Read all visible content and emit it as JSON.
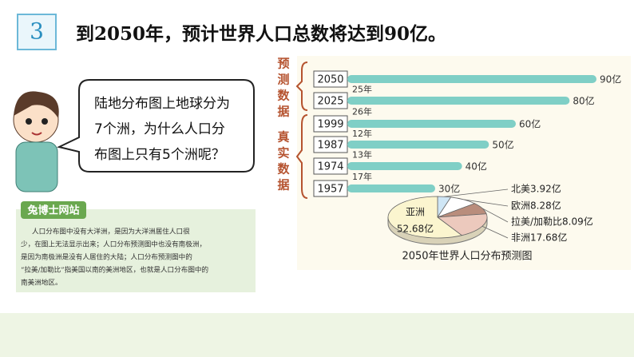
{
  "header": {
    "number": "3",
    "title": "到2050年，预计世界人口总数将达到90亿。"
  },
  "speech": {
    "lines": [
      "陆地分布图上地球分为",
      "7个洲，为什么人口分",
      "布图上只有5个洲呢？"
    ]
  },
  "note": {
    "title": "兔博士网站",
    "lines": [
      "人口分布图中没有大洋洲，是因为大洋洲居住人口很",
      "少，在图上无法显示出来；人口分布预测图中也没有南极洲，",
      "是因为南极洲是没有人居住的大陆；人口分布预测图中的",
      "“拉美/加勒比”指美国以南的美洲地区，也就是人口分布图中的",
      "南美洲地区。"
    ]
  },
  "timeline": {
    "group_labels": [
      "预测数据",
      "真实数据"
    ],
    "rows": [
      {
        "year": "2050",
        "value": 90,
        "label": "90亿"
      },
      {
        "year": "2025",
        "value": 80,
        "label": "80亿"
      },
      {
        "year": "1999",
        "value": 60,
        "label": "60亿"
      },
      {
        "year": "1987",
        "value": 50,
        "label": "50亿"
      },
      {
        "year": "1974",
        "value": 40,
        "label": "40亿"
      },
      {
        "year": "1957",
        "value": 30,
        "label": "30亿"
      }
    ],
    "gaps": [
      "25年",
      "26年",
      "12年",
      "13年",
      "17年"
    ]
  },
  "pie": {
    "title": "2050年世界人口分布预测图",
    "slices": [
      {
        "name": "北美",
        "value": 3.92,
        "label": "北美3.92亿",
        "color": "#cfe6f5"
      },
      {
        "name": "欧洲",
        "value": 8.28,
        "label": "欧洲8.28亿",
        "color": "#ffffff"
      },
      {
        "name": "拉美/加勒比",
        "value": 8.09,
        "label": "拉美/加勒比8.09亿",
        "color": "#b98d7c"
      },
      {
        "name": "非洲",
        "value": 17.68,
        "label": "非洲17.68亿",
        "color": "#ecc9bd"
      },
      {
        "name": "亚洲",
        "value": 52.68,
        "label": "52.68亿",
        "color": "#fbf5cf"
      }
    ]
  }
}
